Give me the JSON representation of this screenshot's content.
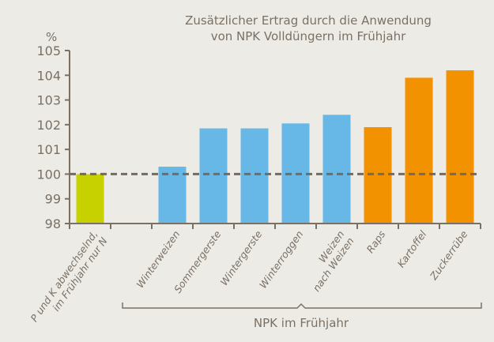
{
  "chart_data": {
    "type": "bar",
    "title_lines": [
      "Zusätzlicher Ertrag durch die Anwendung",
      "von NPK Volldüngern im Frühjahr"
    ],
    "ylabel": "%",
    "ylim": [
      98,
      105
    ],
    "yticks": [
      98,
      99,
      100,
      101,
      102,
      103,
      104,
      105
    ],
    "reference_line": 100,
    "grid": false,
    "categories": [
      {
        "label": [
          "P und K abwechselnd,",
          "im Frühjahr nur N"
        ],
        "value": 100.0,
        "color": "#c8d100"
      },
      {
        "label": [],
        "value": null,
        "color": null
      },
      {
        "label": [
          "Winterweizen"
        ],
        "value": 100.3,
        "color": "#67b8e6"
      },
      {
        "label": [
          "Sommergerste"
        ],
        "value": 101.85,
        "color": "#67b8e6"
      },
      {
        "label": [
          "Wintergerste"
        ],
        "value": 101.85,
        "color": "#67b8e6"
      },
      {
        "label": [
          "Winterroggen"
        ],
        "value": 102.05,
        "color": "#67b8e6"
      },
      {
        "label": [
          "Weizen",
          "nach Weizen"
        ],
        "value": 102.4,
        "color": "#67b8e6"
      },
      {
        "label": [
          "Raps"
        ],
        "value": 101.9,
        "color": "#f39200"
      },
      {
        "label": [
          "Kartoffel"
        ],
        "value": 103.9,
        "color": "#f39200"
      },
      {
        "label": [
          "Zuckerrübe"
        ],
        "value": 104.2,
        "color": "#f39200"
      }
    ],
    "group_label": "NPK im Frühjahr",
    "colors": {
      "text": "#7b7064",
      "axis": "#7b7064",
      "background": "#ecebe6"
    }
  }
}
